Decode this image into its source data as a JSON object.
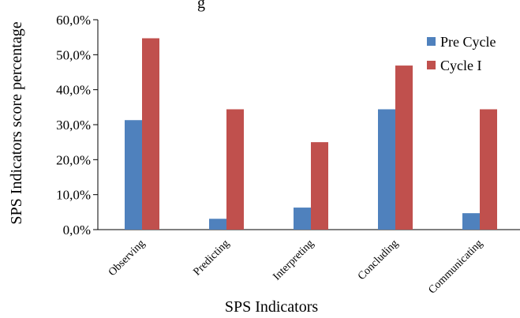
{
  "chart_data": {
    "type": "bar",
    "title_partial": "g",
    "xlabel": "SPS Indicators",
    "ylabel": "SPS Indicators score percentage",
    "categories": [
      "Observing",
      "Predicting",
      "Interpreting",
      "Concluding",
      "Communicating"
    ],
    "series": [
      {
        "name": "Pre Cycle",
        "color": "#4F81BD",
        "values": [
          31.3,
          3.1,
          6.3,
          34.4,
          4.7
        ]
      },
      {
        "name": "Cycle I",
        "color": "#C0504D",
        "values": [
          54.7,
          34.4,
          25.0,
          46.9,
          34.4
        ]
      }
    ],
    "ylim": [
      0,
      60
    ],
    "yticks": [
      0,
      10,
      20,
      30,
      40,
      50,
      60
    ],
    "ytick_labels": [
      "0,0%",
      "10,0%",
      "20,0%",
      "30,0%",
      "40,0%",
      "50,0%",
      "60,0%"
    ],
    "legend_position": "top-right",
    "grid": false
  }
}
